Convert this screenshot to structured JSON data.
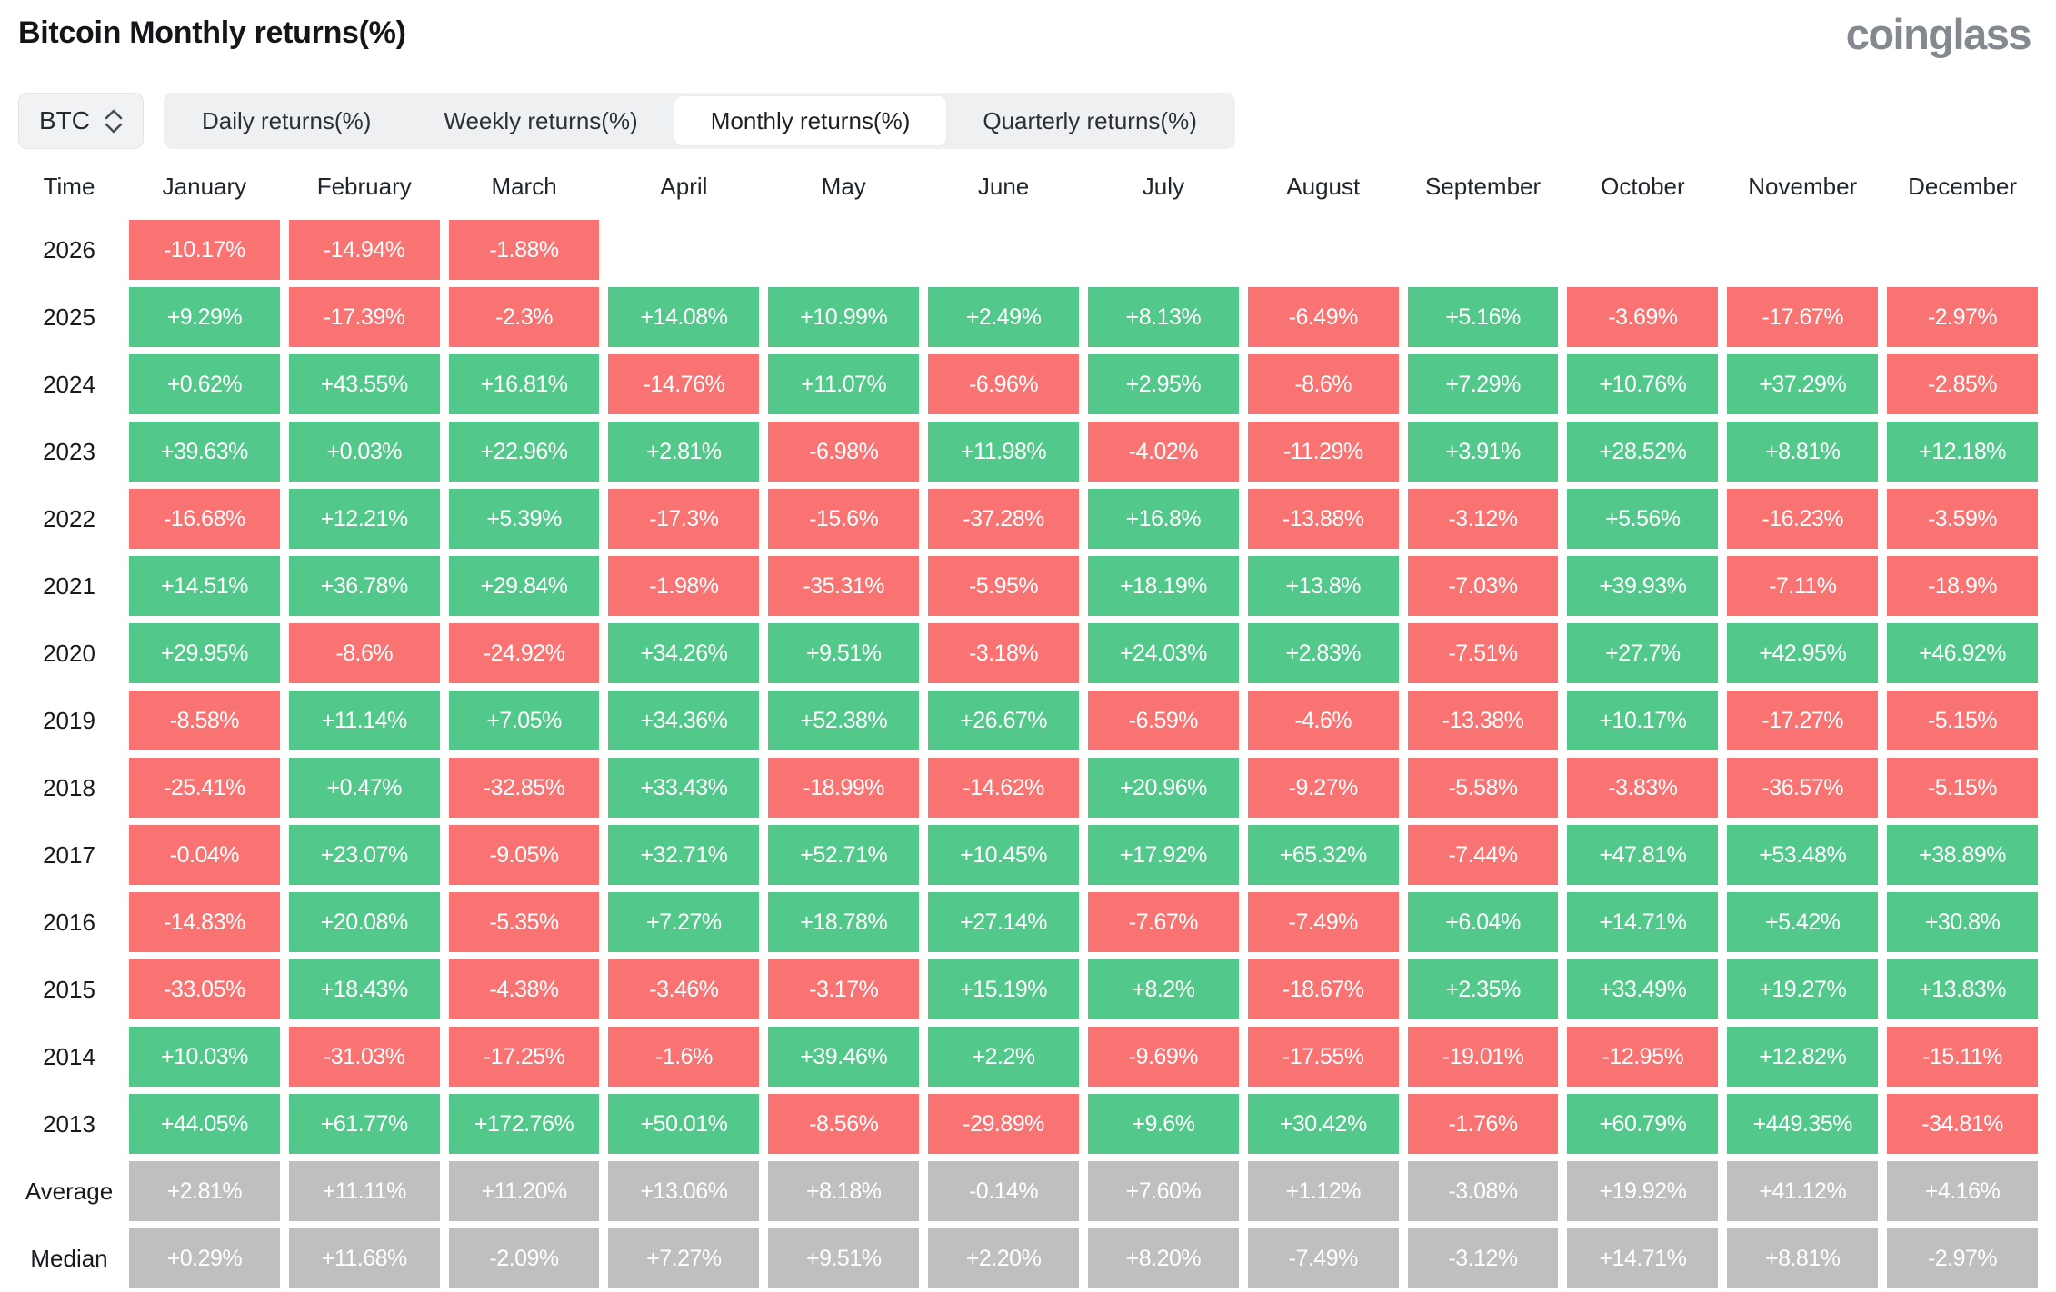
{
  "page": {
    "title": "Bitcoin Monthly returns(%)",
    "brand": "coinglass"
  },
  "controls": {
    "symbol_select": {
      "value": "BTC"
    },
    "tabs": [
      "Daily returns(%)",
      "Weekly returns(%)",
      "Monthly returns(%)",
      "Quarterly returns(%)"
    ],
    "active_tab": "Monthly returns(%)"
  },
  "table": {
    "corner_label": "Time",
    "months": [
      "January",
      "February",
      "March",
      "April",
      "May",
      "June",
      "July",
      "August",
      "September",
      "October",
      "November",
      "December"
    ],
    "rows": [
      {
        "label": "2026",
        "type": "year",
        "values": [
          "-10.17%",
          "-14.94%",
          "-1.88%",
          "",
          "",
          "",
          "",
          "",
          "",
          "",
          "",
          ""
        ]
      },
      {
        "label": "2025",
        "type": "year",
        "values": [
          "+9.29%",
          "-17.39%",
          "-2.3%",
          "+14.08%",
          "+10.99%",
          "+2.49%",
          "+8.13%",
          "-6.49%",
          "+5.16%",
          "-3.69%",
          "-17.67%",
          "-2.97%"
        ]
      },
      {
        "label": "2024",
        "type": "year",
        "values": [
          "+0.62%",
          "+43.55%",
          "+16.81%",
          "-14.76%",
          "+11.07%",
          "-6.96%",
          "+2.95%",
          "-8.6%",
          "+7.29%",
          "+10.76%",
          "+37.29%",
          "-2.85%"
        ]
      },
      {
        "label": "2023",
        "type": "year",
        "values": [
          "+39.63%",
          "+0.03%",
          "+22.96%",
          "+2.81%",
          "-6.98%",
          "+11.98%",
          "-4.02%",
          "-11.29%",
          "+3.91%",
          "+28.52%",
          "+8.81%",
          "+12.18%"
        ]
      },
      {
        "label": "2022",
        "type": "year",
        "values": [
          "-16.68%",
          "+12.21%",
          "+5.39%",
          "-17.3%",
          "-15.6%",
          "-37.28%",
          "+16.8%",
          "-13.88%",
          "-3.12%",
          "+5.56%",
          "-16.23%",
          "-3.59%"
        ]
      },
      {
        "label": "2021",
        "type": "year",
        "values": [
          "+14.51%",
          "+36.78%",
          "+29.84%",
          "-1.98%",
          "-35.31%",
          "-5.95%",
          "+18.19%",
          "+13.8%",
          "-7.03%",
          "+39.93%",
          "-7.11%",
          "-18.9%"
        ]
      },
      {
        "label": "2020",
        "type": "year",
        "values": [
          "+29.95%",
          "-8.6%",
          "-24.92%",
          "+34.26%",
          "+9.51%",
          "-3.18%",
          "+24.03%",
          "+2.83%",
          "-7.51%",
          "+27.7%",
          "+42.95%",
          "+46.92%"
        ]
      },
      {
        "label": "2019",
        "type": "year",
        "values": [
          "-8.58%",
          "+11.14%",
          "+7.05%",
          "+34.36%",
          "+52.38%",
          "+26.67%",
          "-6.59%",
          "-4.6%",
          "-13.38%",
          "+10.17%",
          "-17.27%",
          "-5.15%"
        ]
      },
      {
        "label": "2018",
        "type": "year",
        "values": [
          "-25.41%",
          "+0.47%",
          "-32.85%",
          "+33.43%",
          "-18.99%",
          "-14.62%",
          "+20.96%",
          "-9.27%",
          "-5.58%",
          "-3.83%",
          "-36.57%",
          "-5.15%"
        ]
      },
      {
        "label": "2017",
        "type": "year",
        "values": [
          "-0.04%",
          "+23.07%",
          "-9.05%",
          "+32.71%",
          "+52.71%",
          "+10.45%",
          "+17.92%",
          "+65.32%",
          "-7.44%",
          "+47.81%",
          "+53.48%",
          "+38.89%"
        ]
      },
      {
        "label": "2016",
        "type": "year",
        "values": [
          "-14.83%",
          "+20.08%",
          "-5.35%",
          "+7.27%",
          "+18.78%",
          "+27.14%",
          "-7.67%",
          "-7.49%",
          "+6.04%",
          "+14.71%",
          "+5.42%",
          "+30.8%"
        ]
      },
      {
        "label": "2015",
        "type": "year",
        "values": [
          "-33.05%",
          "+18.43%",
          "-4.38%",
          "-3.46%",
          "-3.17%",
          "+15.19%",
          "+8.2%",
          "-18.67%",
          "+2.35%",
          "+33.49%",
          "+19.27%",
          "+13.83%"
        ]
      },
      {
        "label": "2014",
        "type": "year",
        "values": [
          "+10.03%",
          "-31.03%",
          "-17.25%",
          "-1.6%",
          "+39.46%",
          "+2.2%",
          "-9.69%",
          "-17.55%",
          "-19.01%",
          "-12.95%",
          "+12.82%",
          "-15.11%"
        ]
      },
      {
        "label": "2013",
        "type": "year",
        "values": [
          "+44.05%",
          "+61.77%",
          "+172.76%",
          "+50.01%",
          "-8.56%",
          "-29.89%",
          "+9.6%",
          "+30.42%",
          "-1.76%",
          "+60.79%",
          "+449.35%",
          "-34.81%"
        ]
      },
      {
        "label": "Average",
        "type": "summary",
        "values": [
          "+2.81%",
          "+11.11%",
          "+11.20%",
          "+13.06%",
          "+8.18%",
          "-0.14%",
          "+7.60%",
          "+1.12%",
          "-3.08%",
          "+19.92%",
          "+41.12%",
          "+4.16%"
        ]
      },
      {
        "label": "Median",
        "type": "summary",
        "values": [
          "+0.29%",
          "+11.68%",
          "-2.09%",
          "+7.27%",
          "+9.51%",
          "+2.20%",
          "+8.20%",
          "-7.49%",
          "-3.12%",
          "+14.71%",
          "+8.81%",
          "-2.97%"
        ]
      }
    ]
  },
  "colors": {
    "positive": "#52c98b",
    "negative": "#fa7373",
    "neutral": "#bfbfbf"
  },
  "chart_data": {
    "type": "heatmap",
    "title": "Bitcoin Monthly returns(%)",
    "unit": "%",
    "columns": [
      "January",
      "February",
      "March",
      "April",
      "May",
      "June",
      "July",
      "August",
      "September",
      "October",
      "November",
      "December"
    ],
    "row_labels": [
      "2026",
      "2025",
      "2024",
      "2023",
      "2022",
      "2021",
      "2020",
      "2019",
      "2018",
      "2017",
      "2016",
      "2015",
      "2014",
      "2013"
    ],
    "values": [
      [
        -10.17,
        -14.94,
        -1.88,
        null,
        null,
        null,
        null,
        null,
        null,
        null,
        null,
        null
      ],
      [
        9.29,
        -17.39,
        -2.3,
        14.08,
        10.99,
        2.49,
        8.13,
        -6.49,
        5.16,
        -3.69,
        -17.67,
        -2.97
      ],
      [
        0.62,
        43.55,
        16.81,
        -14.76,
        11.07,
        -6.96,
        2.95,
        -8.6,
        7.29,
        10.76,
        37.29,
        -2.85
      ],
      [
        39.63,
        0.03,
        22.96,
        2.81,
        -6.98,
        11.98,
        -4.02,
        -11.29,
        3.91,
        28.52,
        8.81,
        12.18
      ],
      [
        -16.68,
        12.21,
        5.39,
        -17.3,
        -15.6,
        -37.28,
        16.8,
        -13.88,
        -3.12,
        5.56,
        -16.23,
        -3.59
      ],
      [
        14.51,
        36.78,
        29.84,
        -1.98,
        -35.31,
        -5.95,
        18.19,
        13.8,
        -7.03,
        39.93,
        -7.11,
        -18.9
      ],
      [
        29.95,
        -8.6,
        -24.92,
        34.26,
        9.51,
        -3.18,
        24.03,
        2.83,
        -7.51,
        27.7,
        42.95,
        46.92
      ],
      [
        -8.58,
        11.14,
        7.05,
        34.36,
        52.38,
        26.67,
        -6.59,
        -4.6,
        -13.38,
        10.17,
        -17.27,
        -5.15
      ],
      [
        -25.41,
        0.47,
        -32.85,
        33.43,
        -18.99,
        -14.62,
        20.96,
        -9.27,
        -5.58,
        -3.83,
        -36.57,
        -5.15
      ],
      [
        -0.04,
        23.07,
        -9.05,
        32.71,
        52.71,
        10.45,
        17.92,
        65.32,
        -7.44,
        47.81,
        53.48,
        38.89
      ],
      [
        -14.83,
        20.08,
        -5.35,
        7.27,
        18.78,
        27.14,
        -7.67,
        -7.49,
        6.04,
        14.71,
        5.42,
        30.8
      ],
      [
        -33.05,
        18.43,
        -4.38,
        -3.46,
        -3.17,
        15.19,
        8.2,
        -18.67,
        2.35,
        33.49,
        19.27,
        13.83
      ],
      [
        10.03,
        -31.03,
        -17.25,
        -1.6,
        39.46,
        2.2,
        -9.69,
        -17.55,
        -19.01,
        -12.95,
        12.82,
        -15.11
      ],
      [
        44.05,
        61.77,
        172.76,
        50.01,
        -8.56,
        -29.89,
        9.6,
        30.42,
        -1.76,
        60.79,
        449.35,
        -34.81
      ]
    ],
    "summary_rows": {
      "Average": [
        2.81,
        11.11,
        11.2,
        13.06,
        8.18,
        -0.14,
        7.6,
        1.12,
        -3.08,
        19.92,
        41.12,
        4.16
      ],
      "Median": [
        0.29,
        11.68,
        -2.09,
        7.27,
        9.51,
        2.2,
        8.2,
        -7.49,
        -3.12,
        14.71,
        8.81,
        -2.97
      ]
    },
    "legend_position": "none",
    "grid": false,
    "color_rule": "positive = green (#52c98b), negative = red (#fa7373), summary rows = gray (#bfbfbf), missing = white"
  }
}
